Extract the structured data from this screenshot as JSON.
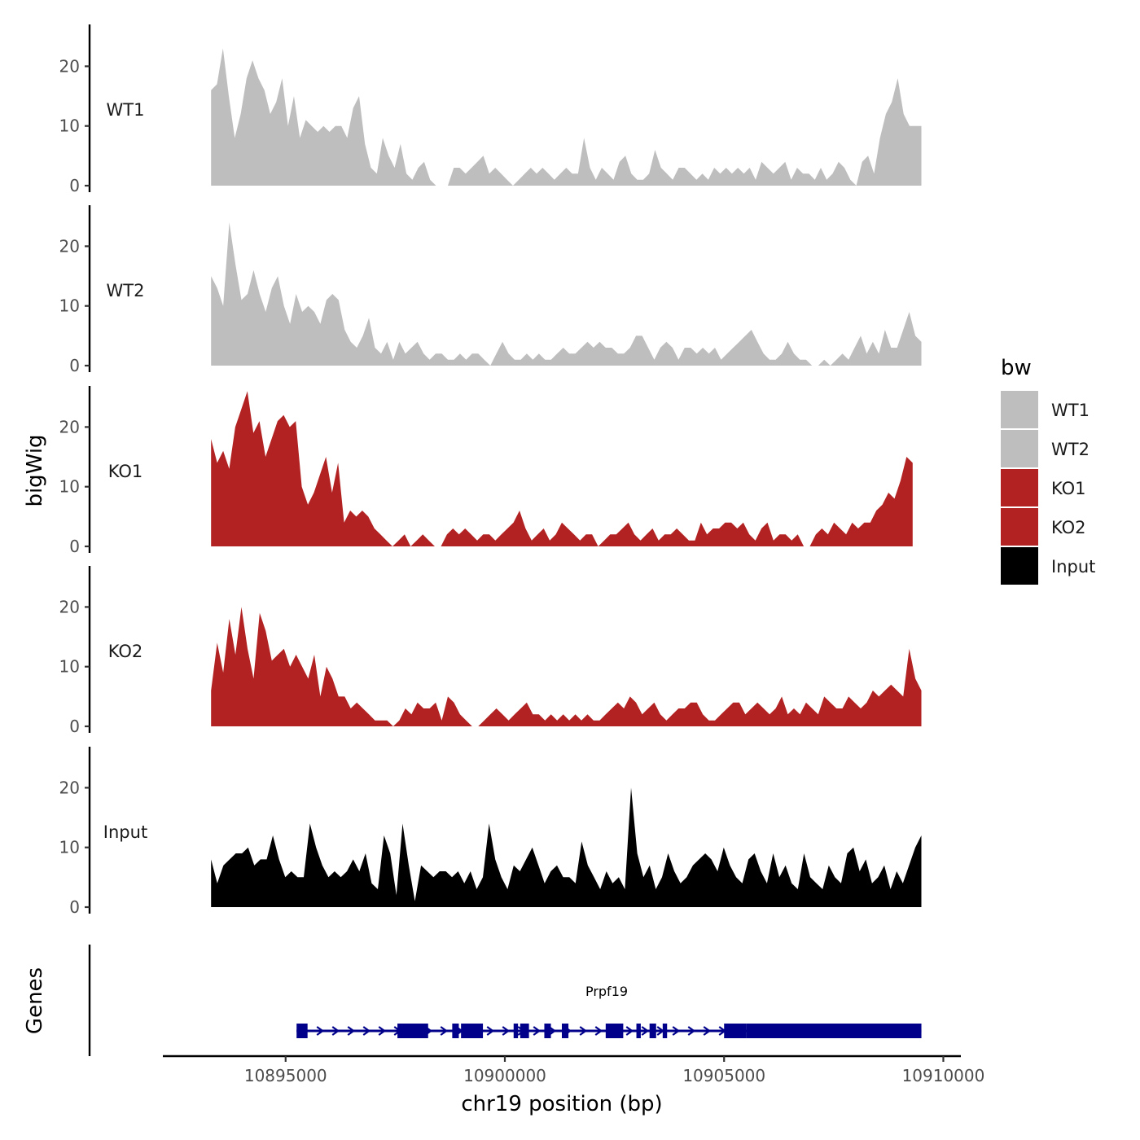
{
  "chart_data": {
    "type": "area",
    "ylabel": "bigWig",
    "xlabel": "chr19 position (bp)",
    "genes_label": "Genes",
    "xlim": [
      10892200,
      10910400
    ],
    "x_ticks": [
      10895000,
      10900000,
      10905000,
      10910000
    ],
    "x_tick_labels": [
      "10895000",
      "10900000",
      "10905000",
      "10910000"
    ],
    "ylim": [
      0,
      27
    ],
    "y_ticks": [
      0,
      10,
      20
    ],
    "y_tick_labels": [
      "0",
      "10",
      "20"
    ],
    "legend": {
      "title": "bw",
      "position": "right",
      "entries": [
        {
          "label": "WT1",
          "color": "#bebebe"
        },
        {
          "label": "WT2",
          "color": "#bebebe"
        },
        {
          "label": "KO1",
          "color": "#b22222"
        },
        {
          "label": "KO2",
          "color": "#b22222"
        },
        {
          "label": "Input",
          "color": "#000000"
        }
      ]
    },
    "series": [
      {
        "name": "WT1",
        "color": "#bebebe",
        "x_start": 10893300,
        "x_end": 10909500,
        "values": [
          16,
          17,
          23,
          15,
          8,
          12,
          18,
          21,
          18,
          16,
          12,
          14,
          18,
          10,
          15,
          8,
          11,
          10,
          9,
          10,
          9,
          10,
          10,
          8,
          13,
          15,
          7,
          3,
          2,
          8,
          5,
          3,
          7,
          2,
          1,
          3,
          4,
          1,
          0,
          0,
          0,
          3,
          3,
          2,
          3,
          4,
          5,
          2,
          3,
          2,
          1,
          0,
          1,
          2,
          3,
          2,
          3,
          2,
          1,
          2,
          3,
          2,
          2,
          8,
          3,
          1,
          3,
          2,
          1,
          4,
          5,
          2,
          1,
          1,
          2,
          6,
          3,
          2,
          1,
          3,
          3,
          2,
          1,
          2,
          1,
          3,
          2,
          3,
          2,
          3,
          2,
          3,
          1,
          4,
          3,
          2,
          3,
          4,
          1,
          3,
          2,
          2,
          1,
          3,
          1,
          2,
          4,
          3,
          1,
          0,
          4,
          5,
          2,
          8,
          12,
          14,
          18,
          12,
          10,
          10,
          10
        ]
      },
      {
        "name": "WT2",
        "color": "#bebebe",
        "x_start": 10893300,
        "x_end": 10909500,
        "values": [
          15,
          13,
          10,
          24,
          17,
          11,
          12,
          16,
          12,
          9,
          13,
          15,
          10,
          7,
          12,
          9,
          10,
          9,
          7,
          11,
          12,
          11,
          6,
          4,
          3,
          5,
          8,
          3,
          2,
          4,
          1,
          4,
          2,
          3,
          4,
          2,
          1,
          2,
          2,
          1,
          1,
          2,
          1,
          2,
          2,
          1,
          0,
          2,
          4,
          2,
          1,
          1,
          2,
          1,
          2,
          1,
          1,
          2,
          3,
          2,
          2,
          3,
          4,
          3,
          4,
          3,
          3,
          2,
          2,
          3,
          5,
          5,
          3,
          1,
          3,
          4,
          3,
          1,
          3,
          3,
          2,
          3,
          2,
          3,
          1,
          2,
          3,
          4,
          5,
          6,
          4,
          2,
          1,
          1,
          2,
          4,
          2,
          1,
          1,
          0,
          0,
          1,
          0,
          1,
          2,
          1,
          3,
          5,
          2,
          4,
          2,
          6,
          3,
          3,
          6,
          9,
          5,
          4
        ]
      },
      {
        "name": "KO1",
        "color": "#b22222",
        "x_start": 10893300,
        "x_end": 10909300,
        "values": [
          18,
          14,
          16,
          13,
          20,
          23,
          26,
          19,
          21,
          15,
          18,
          21,
          22,
          20,
          21,
          10,
          7,
          9,
          12,
          15,
          9,
          14,
          4,
          6,
          5,
          6,
          5,
          3,
          2,
          1,
          0,
          1,
          2,
          0,
          1,
          2,
          1,
          0,
          0,
          2,
          3,
          2,
          3,
          2,
          1,
          2,
          2,
          1,
          2,
          3,
          4,
          6,
          3,
          1,
          2,
          3,
          1,
          2,
          4,
          3,
          2,
          1,
          2,
          2,
          0,
          1,
          2,
          2,
          3,
          4,
          2,
          1,
          2,
          3,
          1,
          2,
          2,
          3,
          2,
          1,
          1,
          4,
          2,
          3,
          3,
          4,
          4,
          3,
          4,
          2,
          1,
          3,
          4,
          1,
          2,
          2,
          1,
          2,
          0,
          0,
          2,
          3,
          2,
          4,
          3,
          2,
          4,
          3,
          4,
          4,
          6,
          7,
          9,
          8,
          11,
          15,
          14
        ]
      },
      {
        "name": "KO2",
        "color": "#b22222",
        "x_start": 10893300,
        "x_end": 10909500,
        "values": [
          6,
          14,
          9,
          18,
          12,
          20,
          13,
          8,
          19,
          16,
          11,
          12,
          13,
          10,
          12,
          10,
          8,
          12,
          5,
          10,
          8,
          5,
          5,
          3,
          4,
          3,
          2,
          1,
          1,
          1,
          0,
          1,
          3,
          2,
          4,
          3,
          3,
          4,
          1,
          5,
          4,
          2,
          1,
          0,
          0,
          1,
          2,
          3,
          2,
          1,
          2,
          3,
          4,
          2,
          2,
          1,
          2,
          1,
          2,
          1,
          2,
          1,
          2,
          1,
          1,
          2,
          3,
          4,
          3,
          5,
          4,
          2,
          3,
          4,
          2,
          1,
          2,
          3,
          3,
          4,
          4,
          2,
          1,
          1,
          2,
          3,
          4,
          4,
          2,
          3,
          4,
          3,
          2,
          3,
          5,
          2,
          3,
          2,
          4,
          3,
          2,
          5,
          4,
          3,
          3,
          5,
          4,
          3,
          4,
          6,
          5,
          6,
          7,
          6,
          5,
          13,
          8,
          6
        ]
      },
      {
        "name": "Input",
        "color": "#000000",
        "x_start": 10893300,
        "x_end": 10909500,
        "values": [
          8,
          4,
          7,
          8,
          9,
          9,
          10,
          7,
          8,
          8,
          12,
          8,
          5,
          6,
          5,
          5,
          14,
          10,
          7,
          5,
          6,
          5,
          6,
          8,
          6,
          9,
          4,
          3,
          12,
          9,
          2,
          14,
          7,
          1,
          7,
          6,
          5,
          6,
          6,
          5,
          6,
          4,
          6,
          3,
          5,
          14,
          8,
          5,
          3,
          7,
          6,
          8,
          10,
          7,
          4,
          6,
          7,
          5,
          5,
          4,
          11,
          7,
          5,
          3,
          6,
          4,
          5,
          3,
          20,
          9,
          5,
          7,
          3,
          5,
          9,
          6,
          4,
          5,
          7,
          8,
          9,
          8,
          6,
          10,
          7,
          5,
          4,
          8,
          9,
          6,
          4,
          9,
          5,
          7,
          4,
          3,
          9,
          5,
          4,
          3,
          7,
          5,
          4,
          9,
          10,
          6,
          8,
          4,
          5,
          7,
          3,
          6,
          4,
          7,
          10,
          12
        ]
      }
    ],
    "gene_track": {
      "gene": "Prpf19",
      "color": "#00008b",
      "strand": "+",
      "start": 10895250,
      "end": 10909500,
      "exons": [
        [
          10895250,
          10895500
        ],
        [
          10897550,
          10898250
        ],
        [
          10898800,
          10898950
        ],
        [
          10899000,
          10899500
        ],
        [
          10900200,
          10900300
        ],
        [
          10900350,
          10900550
        ],
        [
          10900900,
          10901050
        ],
        [
          10901300,
          10901450
        ],
        [
          10902300,
          10902700
        ],
        [
          10903000,
          10903100
        ],
        [
          10903300,
          10903450
        ],
        [
          10903600,
          10903700
        ],
        [
          10905000,
          10905500
        ],
        [
          10905500,
          10909500
        ]
      ]
    }
  }
}
